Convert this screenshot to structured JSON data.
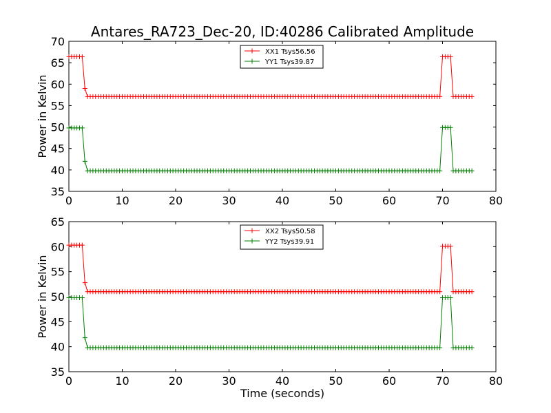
{
  "chart_data": {
    "title": "Antares_RA723_Dec-20, ID:40286 Calibrated Amplitude",
    "xlabel": "Time (seconds)",
    "colors": {
      "xx": "#ff0000",
      "yy": "#007f00"
    },
    "panels": [
      {
        "type": "line",
        "ylabel": "Power in Kelvin",
        "xlim": [
          0,
          80
        ],
        "ylim": [
          35,
          70
        ],
        "xticks": [
          "0",
          "10",
          "20",
          "30",
          "40",
          "50",
          "60",
          "70",
          "80"
        ],
        "yticks": [
          "35",
          "40",
          "45",
          "50",
          "55",
          "60",
          "65",
          "70"
        ],
        "legend_position": "top-center",
        "series": [
          {
            "name": "XX1 Tsys56.56",
            "color": "#ff0000",
            "x": [
              0,
              2.5,
              3.0,
              3.5,
              69.5,
              70.0,
              71.5,
              72.0,
              75.5
            ],
            "y": [
              66.4,
              66.4,
              59.0,
              57.1,
              57.1,
              66.4,
              66.4,
              57.1,
              57.1
            ]
          },
          {
            "name": "YY1 Tsys39.87",
            "color": "#007f00",
            "x": [
              0,
              2.5,
              3.0,
              3.5,
              69.5,
              70.0,
              71.5,
              72.0,
              75.5
            ],
            "y": [
              49.8,
              49.8,
              42.0,
              39.8,
              39.8,
              49.9,
              49.9,
              39.8,
              39.8
            ]
          }
        ]
      },
      {
        "type": "line",
        "ylabel": "Power in Kelvin",
        "xlim": [
          0,
          80
        ],
        "ylim": [
          35,
          65
        ],
        "xticks": [
          "0",
          "10",
          "20",
          "30",
          "40",
          "50",
          "60",
          "70",
          "80"
        ],
        "yticks": [
          "35",
          "40",
          "45",
          "50",
          "55",
          "60",
          "65"
        ],
        "legend_position": "top-center",
        "series": [
          {
            "name": "XX2 Tsys50.58",
            "color": "#ff0000",
            "x": [
              0,
              2.5,
              3.0,
              3.5,
              69.5,
              70.0,
              71.5,
              72.0,
              75.5
            ],
            "y": [
              60.3,
              60.3,
              52.8,
              51.0,
              51.0,
              60.1,
              60.1,
              51.0,
              51.0
            ]
          },
          {
            "name": "YY2 Tsys39.91",
            "color": "#007f00",
            "x": [
              0,
              2.5,
              3.0,
              3.5,
              69.5,
              70.0,
              71.5,
              72.0,
              75.5
            ],
            "y": [
              49.8,
              49.8,
              41.8,
              39.8,
              39.8,
              49.8,
              49.8,
              39.8,
              39.8
            ]
          }
        ]
      }
    ]
  }
}
